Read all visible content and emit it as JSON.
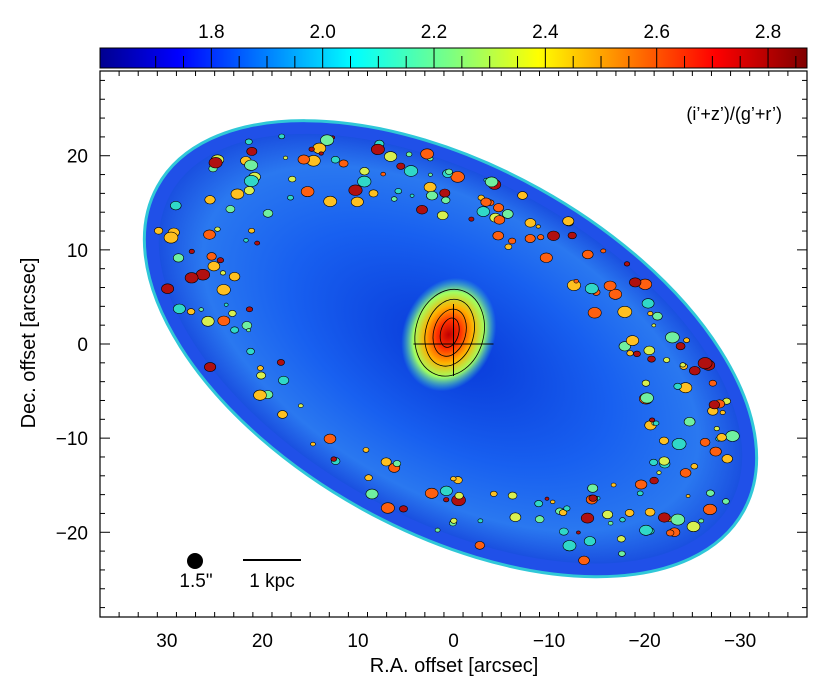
{
  "chart_data": {
    "type": "heatmap",
    "title": "",
    "annotation": "(i’+z’)/(g’+r’)",
    "xlabel": "R.A. offset [arcsec]",
    "ylabel": "Dec. offset [arcsec]",
    "xlim": [
      37,
      -37
    ],
    "ylim": [
      -29,
      29
    ],
    "x_ticks": [
      30,
      20,
      10,
      0,
      -10,
      -20,
      -30
    ],
    "x_tick_labels": [
      "30",
      "20",
      "10",
      "0",
      "−10",
      "−20",
      "−30"
    ],
    "y_ticks": [
      20,
      10,
      0,
      -10,
      -20
    ],
    "y_tick_labels": [
      "20",
      "10",
      "0",
      "−10",
      "−20"
    ],
    "colorbar": {
      "range": [
        1.6,
        2.87
      ],
      "ticks": [
        1.8,
        2.0,
        2.2,
        2.4,
        2.6,
        2.8
      ],
      "tick_labels": [
        "1.8",
        "2.0",
        "2.2",
        "2.4",
        "2.6",
        "2.8"
      ],
      "colormap": "jet",
      "colors": [
        "#00008f",
        "#0000ff",
        "#00ffff",
        "#ffff00",
        "#ff0000",
        "#800000"
      ]
    },
    "beam_label": "1.5\"",
    "scalebar_label": "1 kpc",
    "center_marker": [
      0,
      0
    ],
    "grid": false
  }
}
